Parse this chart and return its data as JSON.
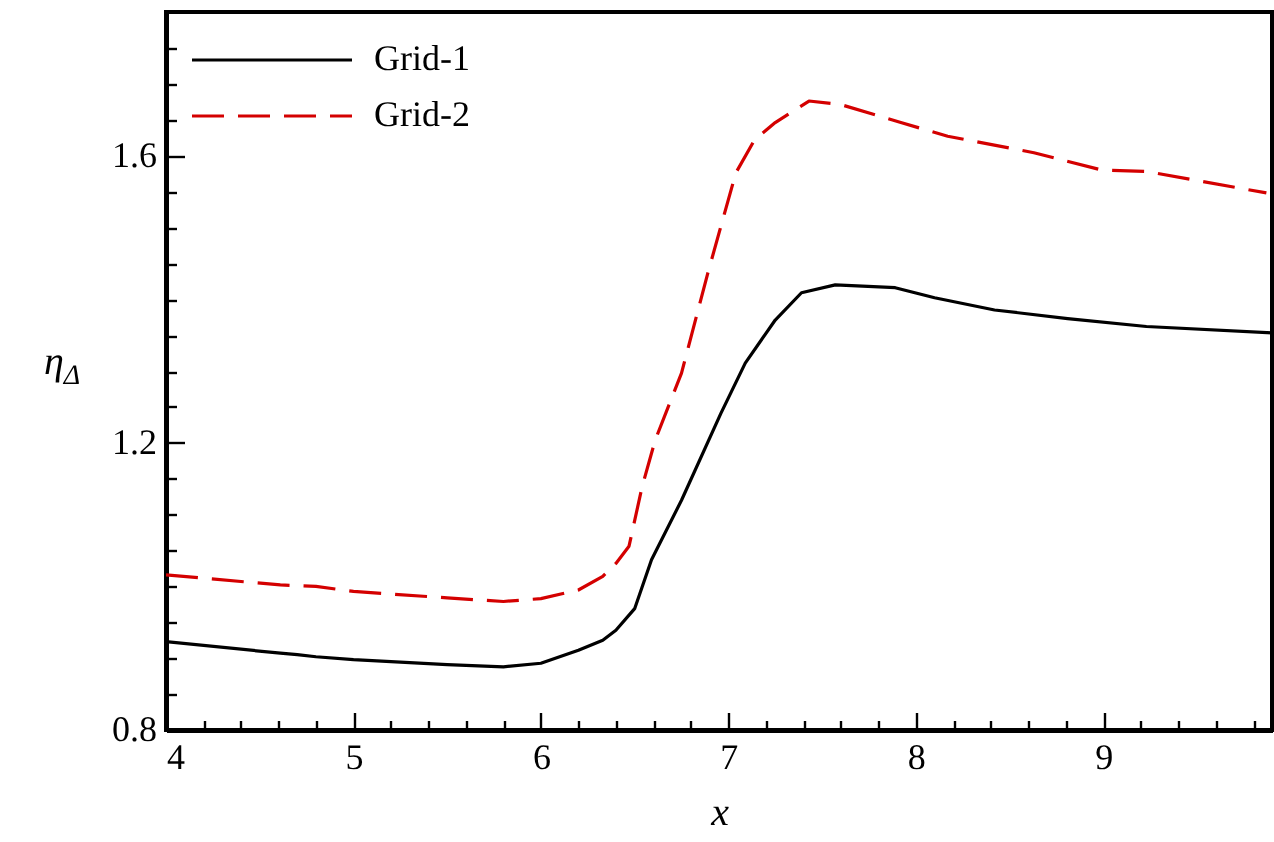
{
  "chart_data": {
    "type": "line",
    "xlabel": "x",
    "ylabel": "η$_{Δ}$",
    "xlim": [
      4,
      9.9
    ],
    "ylim": [
      0.8,
      1.8
    ],
    "xticks": [
      4,
      {
        "value": 4.2,
        "label": null
      },
      {
        "value": 4.4,
        "label": null
      },
      {
        "value": 4.6,
        "label": null
      },
      {
        "value": 4.8,
        "label": null
      },
      5,
      {
        "value": 5.2,
        "label": null
      },
      {
        "value": 5.4,
        "label": null
      },
      {
        "value": 5.6,
        "label": null
      },
      {
        "value": 5.8,
        "label": null
      },
      6,
      {
        "value": 6.2,
        "label": null
      },
      {
        "value": 6.4,
        "label": null
      },
      {
        "value": 6.6,
        "label": null
      },
      {
        "value": 6.8,
        "label": null
      },
      7,
      {
        "value": 7.2,
        "label": null
      },
      {
        "value": 7.4,
        "label": null
      },
      {
        "value": 7.6,
        "label": null
      },
      {
        "value": 7.8,
        "label": null
      },
      8,
      {
        "value": 8.2,
        "label": null
      },
      {
        "value": 8.4,
        "label": null
      },
      {
        "value": 8.6,
        "label": null
      },
      {
        "value": 8.8,
        "label": null
      },
      9,
      {
        "value": 9.2,
        "label": null
      },
      {
        "value": 9.4,
        "label": null
      },
      {
        "value": 9.6,
        "label": null
      },
      {
        "value": 9.8,
        "label": null
      }
    ],
    "yticks": [
      0.8,
      {
        "value": 0.85,
        "label": null
      },
      {
        "value": 0.9,
        "label": null
      },
      {
        "value": 0.95,
        "label": null
      },
      {
        "value": 1.0,
        "label": null
      },
      {
        "value": 1.05,
        "label": null
      },
      {
        "value": 1.1,
        "label": null
      },
      {
        "value": 1.15,
        "label": null
      },
      1.2,
      {
        "value": 1.25,
        "label": null
      },
      {
        "value": 1.3,
        "label": null
      },
      {
        "value": 1.35,
        "label": null
      },
      {
        "value": 1.4,
        "label": null
      },
      {
        "value": 1.45,
        "label": null
      },
      {
        "value": 1.5,
        "label": null
      },
      {
        "value": 1.55,
        "label": null
      },
      1.6,
      {
        "value": 1.65,
        "label": null
      },
      {
        "value": 1.7,
        "label": null
      },
      {
        "value": 1.75,
        "label": null
      }
    ],
    "grid": false,
    "legend": "top left",
    "marker": "none",
    "series": [
      {
        "name": "Grid-1",
        "color": "#000000",
        "line_style": "solid",
        "x": [
          4,
          4.61,
          4.7,
          4.8,
          5,
          5.5,
          5.8,
          6,
          6.2,
          6.33,
          6.4,
          6.5,
          6.59,
          6.75,
          6.96,
          7.09,
          7.25,
          7.39,
          7.57,
          7.89,
          8.1,
          8.42,
          8.81,
          9.23,
          9.9
        ],
        "values": [
          0.923,
          0.907,
          0.905,
          0.902,
          0.898,
          0.891,
          0.888,
          0.893,
          0.911,
          0.925,
          0.939,
          0.969,
          1.037,
          1.12,
          1.241,
          1.311,
          1.371,
          1.409,
          1.42,
          1.416,
          1.402,
          1.385,
          1.373,
          1.362,
          1.353
        ]
      },
      {
        "name": "Grid-2",
        "color": "#d40000",
        "line_style": "dashed",
        "x": [
          4,
          4.61,
          4.8,
          5,
          5.5,
          5.8,
          6,
          6.2,
          6.33,
          6.4,
          6.47,
          6.54,
          6.61,
          6.75,
          6.89,
          7.04,
          7.14,
          7.25,
          7.43,
          7.6,
          7.92,
          8.17,
          8.63,
          8.99,
          9.23,
          9.87
        ],
        "values": [
          1.016,
          1.002,
          1.0,
          0.993,
          0.984,
          0.979,
          0.983,
          0.995,
          1.014,
          1.032,
          1.056,
          1.139,
          1.204,
          1.297,
          1.436,
          1.576,
          1.622,
          1.646,
          1.676,
          1.671,
          1.646,
          1.627,
          1.604,
          1.58,
          1.578,
          1.548
        ]
      }
    ]
  }
}
